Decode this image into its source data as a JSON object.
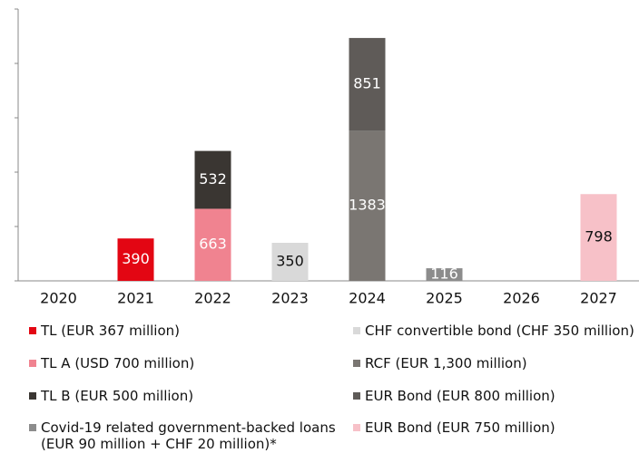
{
  "chart_data": {
    "type": "bar",
    "stacked": true,
    "categories": [
      "2020",
      "2021",
      "2022",
      "2023",
      "2024",
      "2025",
      "2026",
      "2027"
    ],
    "series": [
      {
        "name": "TL (EUR 367 million)",
        "color": "#e30613",
        "values": [
          null,
          390,
          null,
          null,
          null,
          null,
          null,
          null
        ]
      },
      {
        "name": "TL A (USD 700 million)",
        "color": "#f08390",
        "values": [
          null,
          null,
          663,
          null,
          null,
          null,
          null,
          null
        ]
      },
      {
        "name": "TL B (EUR 500 million)",
        "color": "#3a3632",
        "values": [
          null,
          null,
          532,
          null,
          null,
          null,
          null,
          null
        ]
      },
      {
        "name": "Covid-19 related government-backed loans (EUR 90 million + CHF 20 million)*",
        "color": "#8c8c8c",
        "values": [
          null,
          null,
          null,
          null,
          null,
          116,
          null,
          null
        ]
      },
      {
        "name": "CHF convertible bond (CHF 350 million)",
        "color": "#d9d9d9",
        "values": [
          null,
          null,
          null,
          350,
          null,
          null,
          null,
          null
        ]
      },
      {
        "name": "RCF (EUR 1,300 million)",
        "color": "#7a7672",
        "values": [
          null,
          null,
          null,
          null,
          1383,
          null,
          null,
          null
        ]
      },
      {
        "name": "EUR Bond (EUR 800 million)",
        "color": "#5f5b58",
        "values": [
          null,
          null,
          null,
          null,
          851,
          null,
          null,
          null
        ]
      },
      {
        "name": "EUR Bond (EUR 750 million)",
        "color": "#f7c1c8",
        "values": [
          null,
          null,
          null,
          null,
          null,
          null,
          null,
          798
        ]
      }
    ],
    "ylim": [
      0,
      2500
    ],
    "yticks": [
      0,
      500,
      1000,
      1500,
      2000,
      2500
    ]
  }
}
